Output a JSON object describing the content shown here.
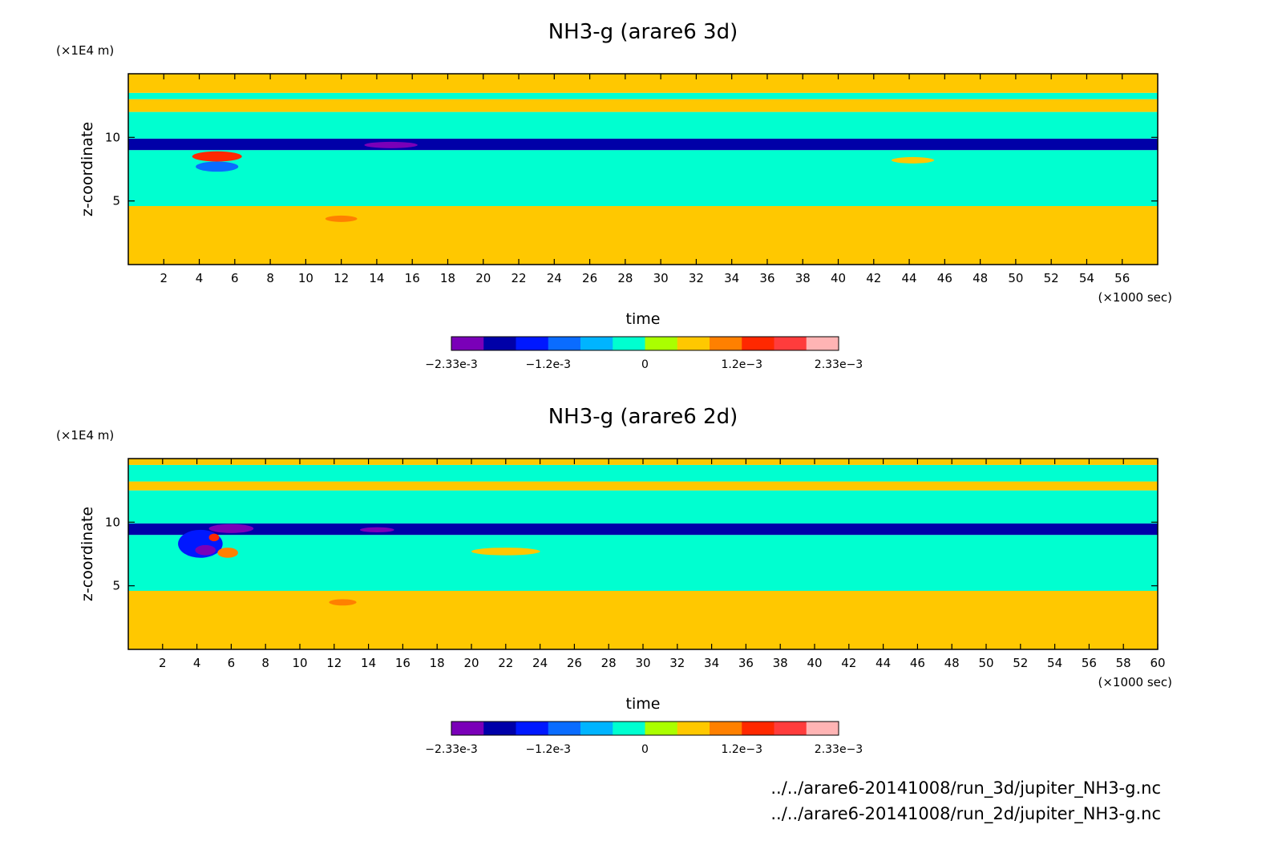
{
  "colorbar": {
    "colors": [
      "#7a00b8",
      "#0000a8",
      "#0018ff",
      "#0a6cff",
      "#00b4ff",
      "#00ffd0",
      "#aaff00",
      "#ffc800",
      "#ff8000",
      "#ff2800",
      "#ff3c3c",
      "#ffb4b4"
    ],
    "tick_labels": [
      "-2.33e-3",
      "-1.2e-3",
      "0",
      "1.2e-3",
      "2.33e-3"
    ]
  },
  "footer": {
    "lines": [
      "../../arare6-20141008/run_3d/jupiter_NH3-g.nc",
      "../../arare6-20141008/run_2d/jupiter_NH3-g.nc"
    ]
  },
  "chart_data": [
    {
      "type": "heatmap",
      "title": "NH3-g (arare6 3d)",
      "xlabel": "time",
      "x_unit": "(×1000 sec)",
      "ylabel": "z-coordinate",
      "y_unit": "(×1E4 m)",
      "xlim": [
        0,
        58
      ],
      "ylim": [
        0,
        15
      ],
      "x_ticks": [
        2,
        4,
        6,
        8,
        10,
        12,
        14,
        16,
        18,
        20,
        22,
        24,
        26,
        28,
        30,
        32,
        34,
        36,
        38,
        40,
        42,
        44,
        46,
        48,
        50,
        52,
        54,
        56
      ],
      "y_ticks": [
        5,
        10
      ],
      "colorbar_range": [
        -0.00233,
        0.00233
      ],
      "bands": [
        {
          "y": [
            0,
            4.6
          ],
          "value": 0.0004
        },
        {
          "y": [
            4.6,
            9.0
          ],
          "value": -0.0001
        },
        {
          "y": [
            9.0,
            9.9
          ],
          "value": -0.0018
        },
        {
          "y": [
            9.9,
            12.0
          ],
          "value": -0.0001
        },
        {
          "y": [
            12.0,
            13.0
          ],
          "value": 0.0004
        },
        {
          "y": [
            13.0,
            13.5
          ],
          "value": -0.0001
        },
        {
          "y": [
            13.5,
            15.0
          ],
          "value": 0.0004
        }
      ],
      "features": [
        {
          "x": 5.0,
          "y": 8.5,
          "rx": 1.4,
          "ry": 0.4,
          "value": 0.0013
        },
        {
          "x": 5.0,
          "y": 7.7,
          "rx": 1.2,
          "ry": 0.4,
          "value": -0.001
        },
        {
          "x": 14.8,
          "y": 9.4,
          "rx": 1.5,
          "ry": 0.25,
          "value": -0.0022
        },
        {
          "x": 12.0,
          "y": 3.6,
          "rx": 0.9,
          "ry": 0.25,
          "value": 0.001
        },
        {
          "x": 44.2,
          "y": 8.2,
          "rx": 1.2,
          "ry": 0.25,
          "value": 0.0004
        }
      ]
    },
    {
      "type": "heatmap",
      "title": "NH3-g (arare6 2d)",
      "xlabel": "time",
      "x_unit": "(×1000 sec)",
      "ylabel": "z-coordinate",
      "y_unit": "(×1E4 m)",
      "xlim": [
        0,
        60
      ],
      "ylim": [
        0,
        15
      ],
      "x_ticks": [
        2,
        4,
        6,
        8,
        10,
        12,
        14,
        16,
        18,
        20,
        22,
        24,
        26,
        28,
        30,
        32,
        34,
        36,
        38,
        40,
        42,
        44,
        46,
        48,
        50,
        52,
        54,
        56,
        58,
        60
      ],
      "y_ticks": [
        5,
        10
      ],
      "colorbar_range": [
        -0.00233,
        0.00233
      ],
      "bands": [
        {
          "y": [
            0,
            4.6
          ],
          "value": 0.0004
        },
        {
          "y": [
            4.6,
            9.0
          ],
          "value": -0.0001
        },
        {
          "y": [
            9.0,
            9.9
          ],
          "value": -0.0018
        },
        {
          "y": [
            9.9,
            12.5
          ],
          "value": -0.0001
        },
        {
          "y": [
            12.5,
            13.2
          ],
          "value": 0.0004
        },
        {
          "y": [
            13.2,
            14.5
          ],
          "value": -0.0001
        },
        {
          "y": [
            14.5,
            15.0
          ],
          "value": 0.0004
        }
      ],
      "features": [
        {
          "x": 4.2,
          "y": 8.3,
          "rx": 1.3,
          "ry": 1.1,
          "value": -0.0014
        },
        {
          "x": 4.5,
          "y": 7.8,
          "rx": 0.6,
          "ry": 0.4,
          "value": -0.0022
        },
        {
          "x": 6.0,
          "y": 9.5,
          "rx": 1.3,
          "ry": 0.35,
          "value": -0.0022
        },
        {
          "x": 5.8,
          "y": 7.6,
          "rx": 0.6,
          "ry": 0.4,
          "value": 0.001
        },
        {
          "x": 5.0,
          "y": 8.8,
          "rx": 0.3,
          "ry": 0.3,
          "value": 0.0013
        },
        {
          "x": 14.5,
          "y": 9.4,
          "rx": 1.0,
          "ry": 0.2,
          "value": -0.0022
        },
        {
          "x": 12.5,
          "y": 3.7,
          "rx": 0.8,
          "ry": 0.25,
          "value": 0.001
        },
        {
          "x": 22.0,
          "y": 7.7,
          "rx": 2.0,
          "ry": 0.3,
          "value": 0.0004
        }
      ]
    }
  ]
}
